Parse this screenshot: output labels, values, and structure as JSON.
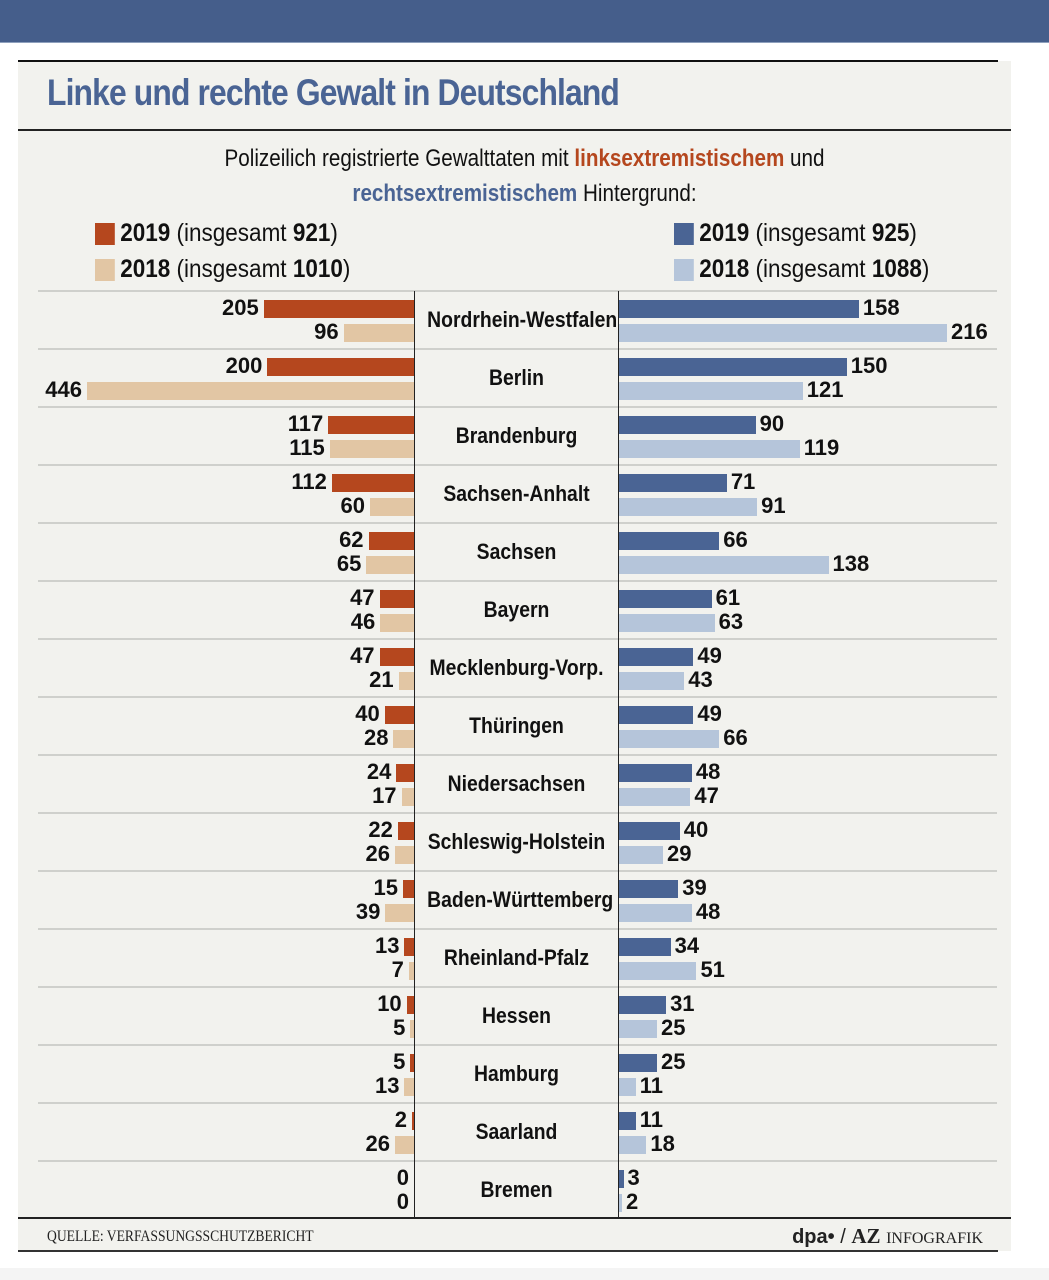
{
  "title": "Linke und rechte Gewalt in Deutschland",
  "subtitle": {
    "line1_pre": "Polizeilich registrierte Gewalttaten mit",
    "line1_red": "linksextremistischem",
    "line1_post": "und",
    "line2_blue": "rechtsextremistischem",
    "line2_post": "Hintergrund:"
  },
  "legend": {
    "left": [
      {
        "year": "2019",
        "text_pre": "(insgesamt",
        "total": "921",
        "text_post": ")",
        "color": "#b5471e"
      },
      {
        "year": "2018",
        "text_pre": "(insgesamt",
        "total": "1010",
        "text_post": ")",
        "color": "#e2c6a4"
      }
    ],
    "right": [
      {
        "year": "2019",
        "text_pre": "(insgesamt",
        "total": "925",
        "text_post": ")",
        "color": "#4a6494"
      },
      {
        "year": "2018",
        "text_pre": "(insgesamt",
        "total": "1088",
        "text_post": ")",
        "color": "#b5c5da"
      }
    ]
  },
  "footer": {
    "source": "QUELLE: VERFASSUNGSSCHUTZBERICHT",
    "credit_dpa": "dpa•",
    "credit_sep": "/",
    "credit_az": "AZ",
    "credit_info": "INFOGRAFIK"
  },
  "chart_data": {
    "type": "bar",
    "orientation": "horizontal-butterfly",
    "title": "Linke und rechte Gewalt in Deutschland",
    "subtitle": "Polizeilich registrierte Gewalttaten mit linksextremistischem und rechtsextremistischem Hintergrund:",
    "categories": [
      "Nordrhein-Westfalen",
      "Berlin",
      "Brandenburg",
      "Sachsen-Anhalt",
      "Sachsen",
      "Bayern",
      "Mecklenburg-Vorp.",
      "Thüringen",
      "Niedersachsen",
      "Schleswig-Holstein",
      "Baden-Württemberg",
      "Rheinland-Pfalz",
      "Hessen",
      "Hamburg",
      "Saarland",
      "Bremen"
    ],
    "series": [
      {
        "name": "links 2019 (insgesamt 921)",
        "side": "left",
        "color": "#b5471e",
        "values": [
          205,
          200,
          117,
          112,
          62,
          47,
          47,
          40,
          24,
          22,
          15,
          13,
          10,
          5,
          2,
          0
        ]
      },
      {
        "name": "links 2018 (insgesamt 1010)",
        "side": "left",
        "color": "#e2c6a4",
        "values": [
          96,
          446,
          115,
          60,
          65,
          46,
          21,
          28,
          17,
          26,
          39,
          7,
          5,
          13,
          26,
          0
        ]
      },
      {
        "name": "rechts 2019 (insgesamt 925)",
        "side": "right",
        "color": "#4a6494",
        "values": [
          158,
          150,
          90,
          71,
          66,
          61,
          49,
          49,
          48,
          40,
          39,
          34,
          31,
          25,
          11,
          3
        ]
      },
      {
        "name": "rechts 2018 (insgesamt 1088)",
        "side": "right",
        "color": "#b5c5da",
        "values": [
          216,
          121,
          119,
          91,
          138,
          63,
          43,
          66,
          47,
          29,
          48,
          51,
          25,
          11,
          18,
          2
        ]
      }
    ],
    "xlabel": "",
    "ylabel": "",
    "grid": true,
    "legend": "top",
    "data_labels": true,
    "source": "QUELLE: VERFASSUNGSSCHUTZBERICHT"
  }
}
